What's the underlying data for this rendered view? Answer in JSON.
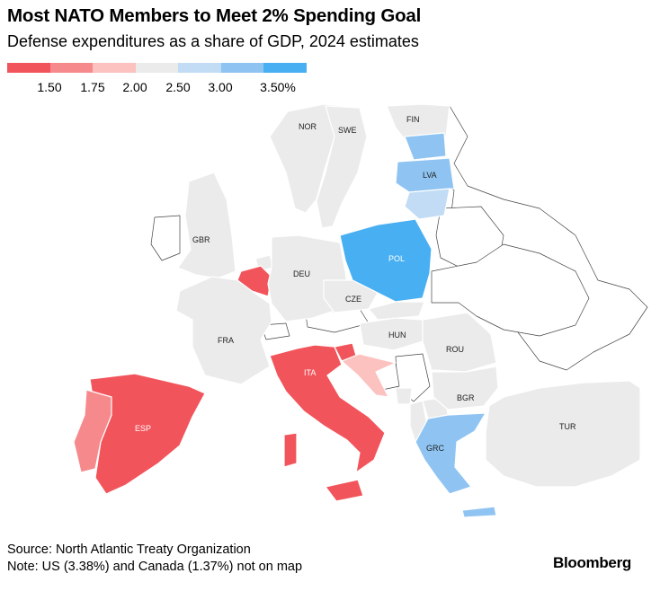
{
  "title": "Most NATO Members to Meet 2% Spending Goal",
  "subtitle": "Defense expenditures as a share of GDP, 2024 estimates",
  "legend": {
    "colors": [
      "#f2545b",
      "#f6898c",
      "#fbc2c0",
      "#ebebeb",
      "#c1dcf4",
      "#8fc4f2",
      "#48aff2"
    ],
    "labels": [
      "1.50",
      "1.75",
      "2.00",
      "2.50",
      "3.00",
      "3.50%"
    ]
  },
  "colors": {
    "red": "#f2545b",
    "salmon": "#f6898c",
    "pink": "#fbc2c0",
    "gray": "#ebebeb",
    "lightblue": "#c1dcf4",
    "midblue": "#8fc4f2",
    "blue": "#48aff2",
    "border": "#ffffff",
    "nonmember": "#ffffff",
    "outline": "#444444"
  },
  "countries": {
    "nor": "NOR",
    "swe": "SWE",
    "fin": "FIN",
    "gbr": "GBR",
    "lva": "LVA",
    "pol": "POL",
    "deu": "DEU",
    "cze": "CZE",
    "fra": "FRA",
    "hun": "HUN",
    "rou": "ROU",
    "ita": "ITA",
    "esp": "ESP",
    "bgr": "BGR",
    "tur": "TUR",
    "grc": "GRC"
  },
  "source": "Source: North Atlantic Treaty Organization",
  "note": "Note: US (3.38%) and Canada (1.37%) not on map",
  "brand": "Bloomberg"
}
